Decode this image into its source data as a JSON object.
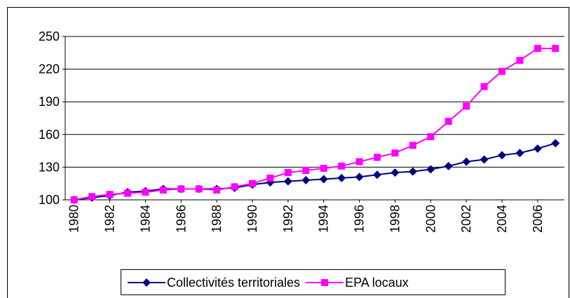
{
  "chart_data": {
    "type": "line",
    "x": [
      1980,
      1981,
      1982,
      1983,
      1984,
      1985,
      1986,
      1987,
      1988,
      1989,
      1990,
      1991,
      1992,
      1993,
      1994,
      1995,
      1996,
      1997,
      1998,
      1999,
      2000,
      2001,
      2002,
      2003,
      2004,
      2005,
      2006,
      2007
    ],
    "xlim": [
      1979.5,
      2007.5
    ],
    "xticks": [
      1980,
      1982,
      1984,
      1986,
      1988,
      1990,
      1992,
      1994,
      1996,
      1998,
      2000,
      2002,
      2004,
      2006
    ],
    "ylim": [
      100,
      250
    ],
    "yticks": [
      100,
      130,
      160,
      190,
      220,
      250
    ],
    "grid": true,
    "legend": "bottom",
    "series": [
      {
        "name": "Collectivités territoriales",
        "color": "#000080",
        "marker": "diamond",
        "values": [
          100,
          102,
          104,
          107,
          108,
          110,
          110,
          110,
          110,
          111,
          114,
          116,
          117,
          118,
          119,
          120,
          121,
          123,
          125,
          126,
          128,
          131,
          135,
          137,
          141,
          143,
          147,
          152
        ]
      },
      {
        "name": "EPA locaux",
        "color": "#ff00ff",
        "marker": "square",
        "values": [
          100,
          103,
          105,
          106,
          107,
          109,
          110,
          110,
          109,
          112,
          115,
          120,
          125,
          127,
          129,
          131,
          135,
          139,
          143,
          150,
          158,
          172,
          186,
          204,
          218,
          228,
          239,
          239
        ]
      }
    ]
  }
}
